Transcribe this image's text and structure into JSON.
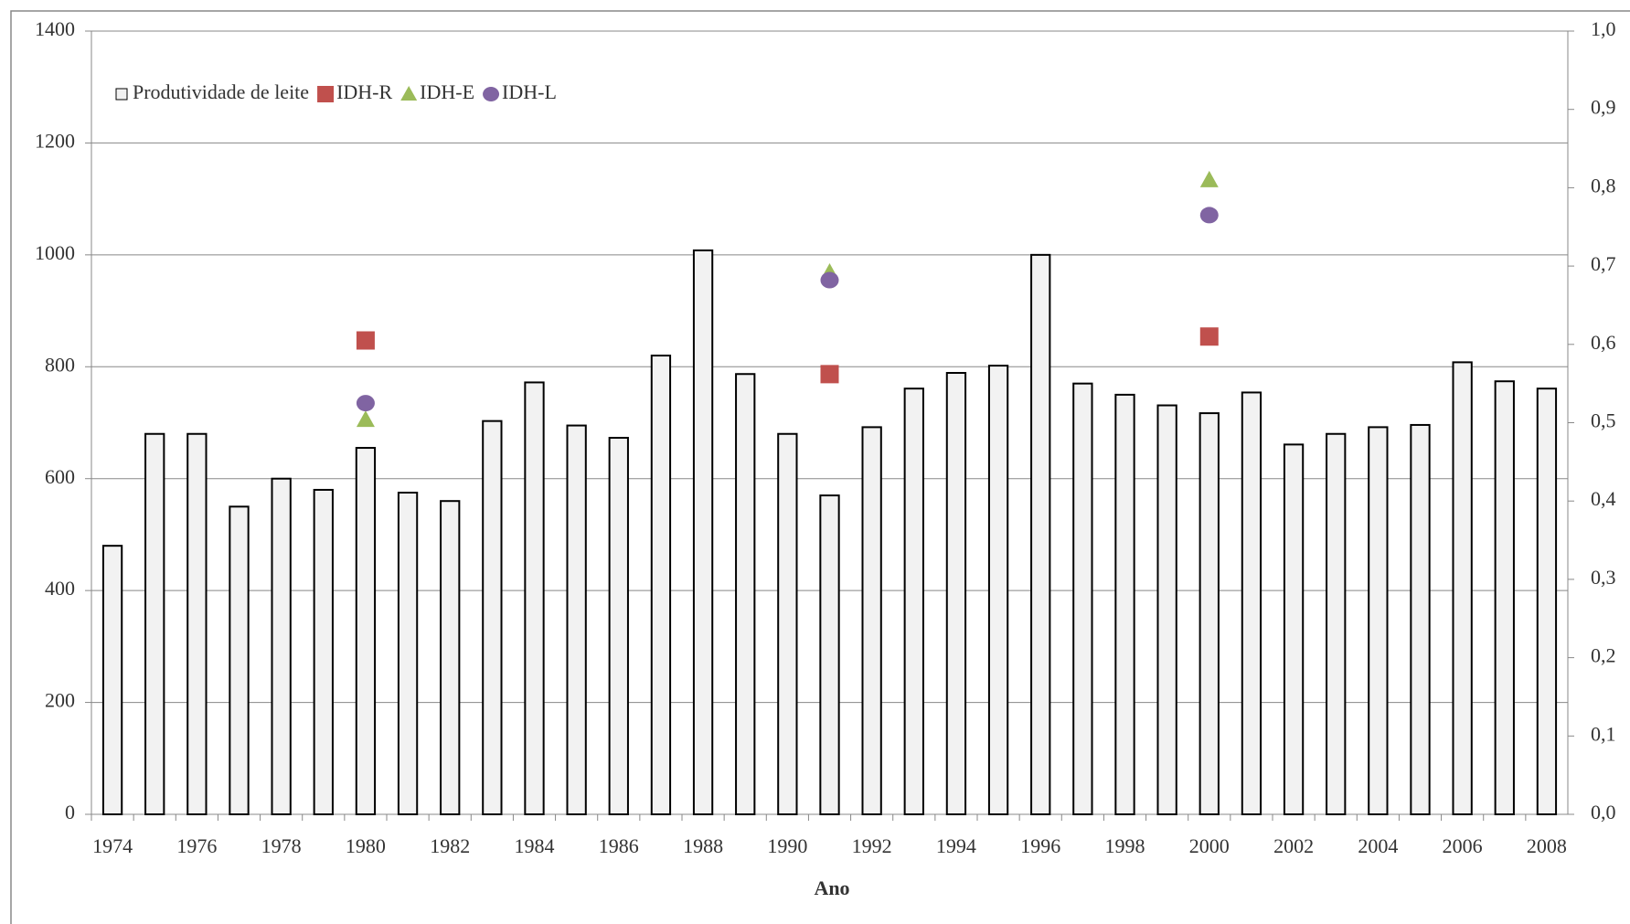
{
  "chart_data": {
    "type": "bar",
    "x_label": "Ano",
    "categories": [
      "1974",
      null,
      "1976",
      null,
      "1978",
      null,
      "1980",
      null,
      "1982",
      null,
      "1984",
      null,
      "1986",
      null,
      "1988",
      null,
      "1990",
      null,
      "1992",
      null,
      "1994",
      null,
      "1996",
      null,
      "1998",
      null,
      "2000",
      null,
      "2002",
      null,
      "2004",
      null,
      "2006",
      null,
      "2008"
    ],
    "series": [
      {
        "name": "Produtividade de leite",
        "type": "bar",
        "color": "#f2f2f2",
        "values": [
          480,
          680,
          680,
          550,
          600,
          580,
          655,
          575,
          560,
          703,
          772,
          695,
          673,
          820,
          1008,
          787,
          680,
          570,
          692,
          761,
          789,
          802,
          1000,
          770,
          750,
          731,
          717,
          754,
          661,
          680,
          692,
          696,
          808,
          774,
          761
        ]
      },
      {
        "name": "IDH-R",
        "type": "scatter",
        "axis": "y2",
        "marker": "square",
        "color": "#c0504d",
        "values": [
          null,
          null,
          null,
          null,
          null,
          null,
          0.605,
          null,
          null,
          null,
          null,
          null,
          null,
          null,
          null,
          null,
          null,
          0.562,
          null,
          null,
          null,
          null,
          null,
          null,
          null,
          null,
          0.61,
          null,
          null,
          null,
          null,
          null,
          null,
          null,
          null
        ]
      },
      {
        "name": "IDH-E",
        "type": "scatter",
        "axis": "y2",
        "marker": "triangle",
        "color": "#9bbb59",
        "values": [
          null,
          null,
          null,
          null,
          null,
          null,
          0.504,
          null,
          null,
          null,
          null,
          null,
          null,
          null,
          null,
          null,
          null,
          0.692,
          null,
          null,
          null,
          null,
          null,
          null,
          null,
          null,
          0.81,
          null,
          null,
          null,
          null,
          null,
          null,
          null,
          null
        ]
      },
      {
        "name": "IDH-L",
        "type": "scatter",
        "axis": "y2",
        "marker": "circle",
        "color": "#8064a2",
        "values": [
          null,
          null,
          null,
          null,
          null,
          null,
          0.525,
          null,
          null,
          null,
          null,
          null,
          null,
          null,
          null,
          null,
          null,
          0.682,
          null,
          null,
          null,
          null,
          null,
          null,
          null,
          null,
          0.765,
          null,
          null,
          null,
          null,
          null,
          null,
          null,
          null
        ]
      }
    ],
    "ylim": [
      0,
      1400
    ],
    "yticks": [
      0,
      200,
      400,
      600,
      800,
      1000,
      1200,
      1400
    ],
    "y2lim": [
      0,
      1
    ],
    "y2ticks": [
      {
        "value": 0,
        "label": "0,0"
      },
      {
        "value": 0.1,
        "label": "0,1"
      },
      {
        "value": 0.2,
        "label": "0,2"
      },
      {
        "value": 0.3,
        "label": "0,3"
      },
      {
        "value": 0.4,
        "label": "0,4"
      },
      {
        "value": 0.5,
        "label": "0,5"
      },
      {
        "value": 0.6,
        "label": "0,6"
      },
      {
        "value": 0.7,
        "label": "0,7"
      },
      {
        "value": 0.8,
        "label": "0,8"
      },
      {
        "value": 0.9,
        "label": "0,9"
      },
      {
        "value": 1,
        "label": "1,0"
      }
    ],
    "grid": true
  }
}
